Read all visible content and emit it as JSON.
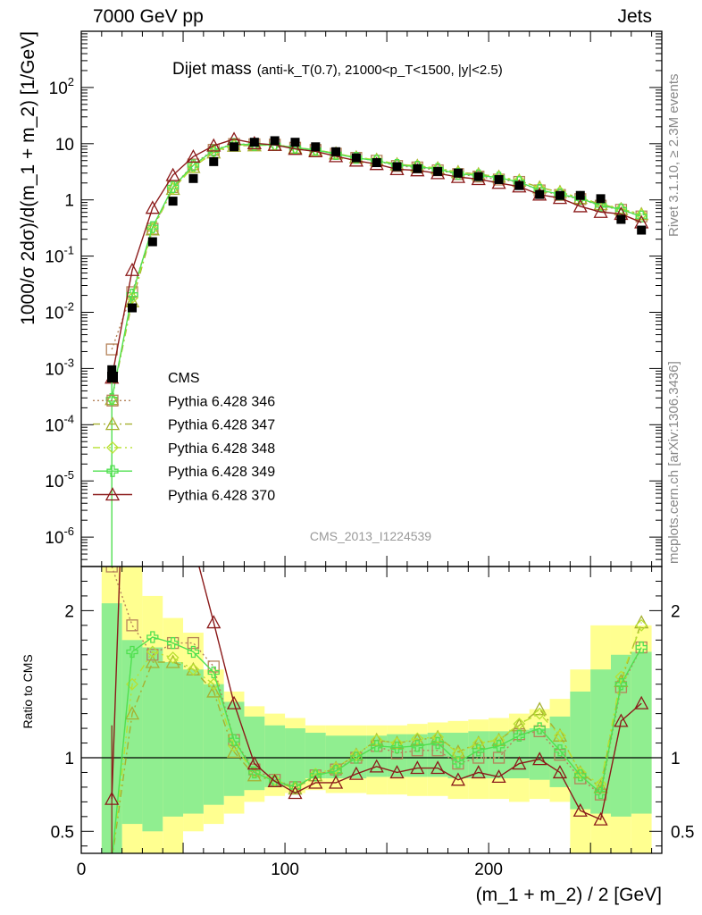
{
  "header": {
    "left": "7000 GeV pp",
    "right": "Jets"
  },
  "side_labels": {
    "rivet": "Rivet 3.1.10, ≥ 2.3M events",
    "mcplots": "mcplots.cern.ch [arXiv:1306.3436]"
  },
  "chart_data": {
    "type": "line",
    "title": "Dijet mass",
    "title_detail": "(anti-k_T(0.7), 21000<p_T<1500, |y|<2.5)",
    "watermark": "CMS_2013_I1224539",
    "xlabel": "(m_1 + m_2) / 2 [GeV]",
    "ylabel": "1000/σ 2dσ)/d(m_1 + m_2) [1/GeV]",
    "ratio_ylabel": "Ratio to CMS",
    "xlim": [
      0,
      285
    ],
    "ylim": [
      3e-07,
      1000
    ],
    "ratio_ylim": [
      0.35,
      2.3
    ],
    "log_y": true,
    "x_ticks": [
      "0",
      "100",
      "200"
    ],
    "y_ticks": [
      "10^-6",
      "10^-5",
      "10^-4",
      "10^-3",
      "10^-2",
      "10^-1",
      "1",
      "10",
      "10^2"
    ],
    "ratio_ticks": [
      "0.5",
      "1",
      "2"
    ],
    "legend_placement": "left",
    "colors": {
      "data": "#000000",
      "band_inner": "#90ee90",
      "band_outer": "#ffff90"
    },
    "x": [
      15,
      25,
      35,
      45,
      55,
      65,
      75,
      85,
      95,
      105,
      115,
      125,
      135,
      145,
      155,
      165,
      175,
      185,
      195,
      205,
      215,
      225,
      235,
      245,
      255,
      265,
      275
    ],
    "data_values": [
      0.00095,
      0.012,
      0.18,
      0.95,
      2.4,
      4.8,
      8.8,
      10.6,
      11.3,
      10.6,
      8.8,
      7.2,
      5.6,
      4.6,
      3.9,
      3.6,
      3.2,
      3.0,
      2.6,
      2.3,
      1.8,
      1.25,
      1.2,
      1.2,
      1.05,
      0.45,
      0.29
    ],
    "band": {
      "bins": [
        [
          10,
          20
        ],
        [
          20,
          30
        ],
        [
          30,
          40
        ],
        [
          40,
          50
        ],
        [
          50,
          60
        ],
        [
          60,
          70
        ],
        [
          70,
          80
        ],
        [
          80,
          90
        ],
        [
          90,
          100
        ],
        [
          100,
          110
        ],
        [
          110,
          120
        ],
        [
          120,
          130
        ],
        [
          130,
          140
        ],
        [
          140,
          150
        ],
        [
          150,
          160
        ],
        [
          160,
          170
        ],
        [
          170,
          180
        ],
        [
          180,
          190
        ],
        [
          190,
          200
        ],
        [
          200,
          210
        ],
        [
          210,
          220
        ],
        [
          220,
          230
        ],
        [
          230,
          240
        ],
        [
          240,
          250
        ],
        [
          250,
          260
        ],
        [
          260,
          270
        ],
        [
          270,
          280
        ]
      ],
      "inner_lo": [
        0.3,
        0.55,
        0.5,
        0.6,
        0.62,
        0.68,
        0.74,
        0.78,
        0.8,
        0.82,
        0.86,
        0.86,
        0.86,
        0.87,
        0.87,
        0.87,
        0.87,
        0.86,
        0.86,
        0.86,
        0.86,
        0.85,
        0.8,
        0.65,
        0.62,
        0.6,
        0.62
      ],
      "inner_hi": [
        2.05,
        1.8,
        1.75,
        1.65,
        1.6,
        1.5,
        1.38,
        1.28,
        1.22,
        1.2,
        1.17,
        1.15,
        1.15,
        1.15,
        1.16,
        1.16,
        1.17,
        1.17,
        1.18,
        1.18,
        1.19,
        1.2,
        1.28,
        1.45,
        1.6,
        1.7,
        1.72
      ],
      "outer_lo": [
        0.25,
        0.32,
        0.35,
        0.35,
        0.5,
        0.55,
        0.62,
        0.7,
        0.74,
        0.76,
        0.78,
        0.76,
        0.76,
        0.75,
        0.75,
        0.74,
        0.74,
        0.72,
        0.72,
        0.72,
        0.7,
        0.72,
        0.7,
        0.35,
        0.35,
        0.35,
        0.35
      ],
      "outer_hi": [
        2.3,
        2.3,
        2.1,
        1.95,
        1.85,
        1.6,
        1.45,
        1.35,
        1.3,
        1.27,
        1.22,
        1.22,
        1.22,
        1.22,
        1.22,
        1.23,
        1.24,
        1.25,
        1.26,
        1.27,
        1.3,
        1.33,
        1.4,
        1.6,
        1.9,
        1.9,
        1.9
      ]
    },
    "series": [
      {
        "name": "Pythia 6.428 346",
        "color": "#b5835a",
        "dash": "2,3",
        "marker": "square",
        "ratio": [
          2.3,
          1.9,
          1.7,
          1.78,
          1.78,
          1.62,
          1.12,
          0.92,
          0.85,
          0.8,
          0.88,
          0.92,
          1.0,
          1.08,
          1.03,
          1.05,
          1.05,
          0.96,
          1.0,
          1.0,
          1.16,
          1.18,
          1.02,
          0.86,
          0.75,
          1.48,
          1.75
        ]
      },
      {
        "name": "Pythia 6.428 347",
        "color": "#a6b030",
        "dash": "8,4,2,4",
        "marker": "triangle",
        "ratio": [
          0.3,
          1.3,
          1.65,
          1.65,
          1.6,
          1.45,
          1.04,
          0.88,
          0.84,
          0.79,
          0.88,
          0.93,
          1.02,
          1.12,
          1.1,
          1.12,
          1.14,
          1.04,
          1.1,
          1.12,
          1.22,
          1.33,
          1.15,
          0.9,
          0.8,
          1.52,
          1.92
        ]
      },
      {
        "name": "Pythia 6.428 348",
        "color": "#b8e030",
        "dash": "8,4,2,4,2,4",
        "marker": "diamond",
        "ratio": [
          0.3,
          1.5,
          1.72,
          1.68,
          1.6,
          1.5,
          1.08,
          0.9,
          0.85,
          0.8,
          0.89,
          0.93,
          1.02,
          1.12,
          1.1,
          1.13,
          1.14,
          1.03,
          1.1,
          1.12,
          1.23,
          1.3,
          1.15,
          0.9,
          0.82,
          1.55,
          1.9
        ]
      },
      {
        "name": "Pythia 6.428 349",
        "color": "#50e050",
        "dash": "",
        "marker": "cross",
        "ratio": [
          0.3,
          1.72,
          1.82,
          1.78,
          1.72,
          1.58,
          1.12,
          0.9,
          0.84,
          0.8,
          0.88,
          0.91,
          1.0,
          1.08,
          1.07,
          1.08,
          1.1,
          0.97,
          1.05,
          1.08,
          1.15,
          1.2,
          1.05,
          0.88,
          0.76,
          1.5,
          1.75
        ]
      },
      {
        "name": "Pythia 6.428 370",
        "color": "#8b1a1a",
        "dash": "",
        "marker": "triangle",
        "ratio": [
          0.72,
          4.7,
          4.0,
          2.9,
          2.45,
          1.92,
          1.37,
          0.96,
          0.84,
          0.76,
          0.83,
          0.83,
          0.89,
          0.94,
          0.9,
          0.93,
          0.93,
          0.85,
          0.9,
          0.87,
          0.96,
          0.99,
          0.9,
          0.64,
          0.58,
          1.25,
          1.37
        ]
      }
    ]
  }
}
